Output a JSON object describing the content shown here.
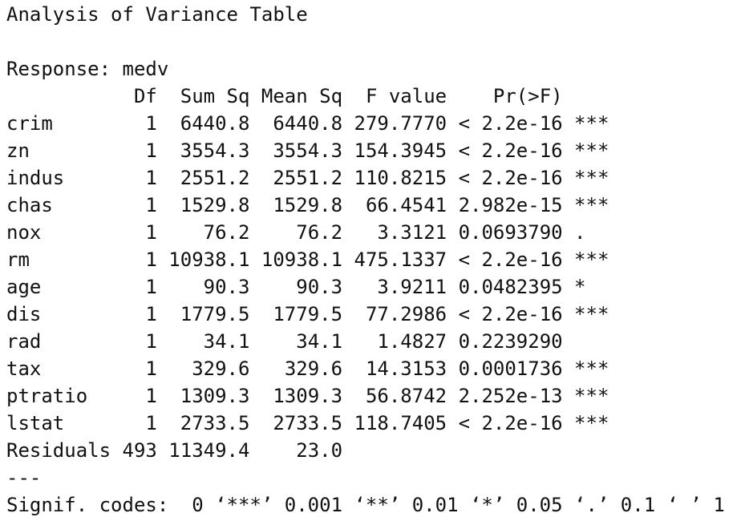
{
  "header": {
    "title": "Analysis of Variance Table",
    "response": "Response: medv"
  },
  "table": {
    "columns": [
      "Df",
      "Sum Sq",
      "Mean Sq",
      "F value",
      "Pr(>F)"
    ],
    "rows": [
      {
        "name": "crim",
        "df": "1",
        "sum_sq": "6440.8",
        "mean_sq": "6440.8",
        "f_value": "279.7770",
        "p_value": "< 2.2e-16",
        "signif": "***"
      },
      {
        "name": "zn",
        "df": "1",
        "sum_sq": "3554.3",
        "mean_sq": "3554.3",
        "f_value": "154.3945",
        "p_value": "< 2.2e-16",
        "signif": "***"
      },
      {
        "name": "indus",
        "df": "1",
        "sum_sq": "2551.2",
        "mean_sq": "2551.2",
        "f_value": "110.8215",
        "p_value": "< 2.2e-16",
        "signif": "***"
      },
      {
        "name": "chas",
        "df": "1",
        "sum_sq": "1529.8",
        "mean_sq": "1529.8",
        "f_value": "66.4541",
        "p_value": "2.982e-15",
        "signif": "***"
      },
      {
        "name": "nox",
        "df": "1",
        "sum_sq": "76.2",
        "mean_sq": "76.2",
        "f_value": "3.3121",
        "p_value": "0.0693790",
        "signif": "."
      },
      {
        "name": "rm",
        "df": "1",
        "sum_sq": "10938.1",
        "mean_sq": "10938.1",
        "f_value": "475.1337",
        "p_value": "< 2.2e-16",
        "signif": "***"
      },
      {
        "name": "age",
        "df": "1",
        "sum_sq": "90.3",
        "mean_sq": "90.3",
        "f_value": "3.9211",
        "p_value": "0.0482395",
        "signif": "*"
      },
      {
        "name": "dis",
        "df": "1",
        "sum_sq": "1779.5",
        "mean_sq": "1779.5",
        "f_value": "77.2986",
        "p_value": "< 2.2e-16",
        "signif": "***"
      },
      {
        "name": "rad",
        "df": "1",
        "sum_sq": "34.1",
        "mean_sq": "34.1",
        "f_value": "1.4827",
        "p_value": "0.2239290"
      },
      {
        "name": "tax",
        "df": "1",
        "sum_sq": "329.6",
        "mean_sq": "329.6",
        "f_value": "14.3153",
        "p_value": "0.0001736",
        "signif": "***"
      },
      {
        "name": "ptratio",
        "df": "1",
        "sum_sq": "1309.3",
        "mean_sq": "1309.3",
        "f_value": "56.8742",
        "p_value": "2.252e-13",
        "signif": "***"
      },
      {
        "name": "lstat",
        "df": "1",
        "sum_sq": "2733.5",
        "mean_sq": "2733.5",
        "f_value": "118.7405",
        "p_value": "< 2.2e-16",
        "signif": "***"
      },
      {
        "name": "Residuals",
        "df": "493",
        "sum_sq": "11349.4",
        "mean_sq": "23.0"
      }
    ]
  },
  "footer": {
    "separator": "---",
    "signif_codes": "Signif. codes:  0 ‘***’ 0.001 ‘**’ 0.01 ‘*’ 0.05 ‘.’ 0.1 ‘ ’ 1"
  }
}
